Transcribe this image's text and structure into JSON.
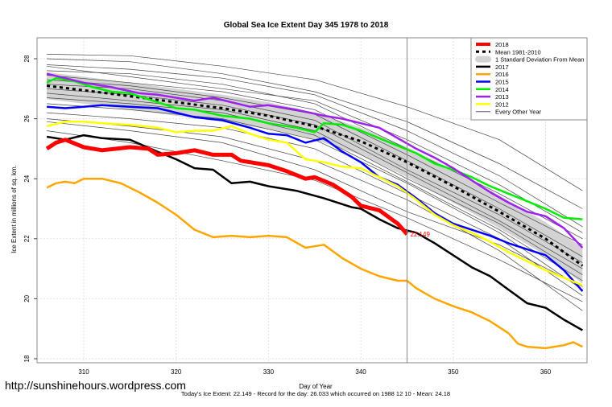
{
  "chart_data": {
    "type": "line",
    "title": "Global Sea Ice Extent Day 345 1978 to 2018",
    "xlabel": "Day of Year",
    "ylabel": "Ice Extent in millions of sq. km.",
    "xlim": [
      305,
      364.5
    ],
    "ylim": [
      17.9,
      28.7
    ],
    "xticks": [
      310,
      320,
      330,
      340,
      350,
      360
    ],
    "yticks": [
      18,
      20,
      22,
      24,
      26,
      28
    ],
    "grid": true,
    "current_day": 345,
    "current_value_label": "22.149",
    "legend_position": "top-right",
    "legend": [
      {
        "label": "2018",
        "color": "#ff0000",
        "style": "thick"
      },
      {
        "label": "Mean 1981-2010",
        "color": "#000000",
        "style": "dashed"
      },
      {
        "label": "1 Standard Deviation From Mean",
        "color": "#d3d3d3",
        "style": "band"
      },
      {
        "label": "2017",
        "color": "#000000",
        "style": "solid"
      },
      {
        "label": "2016",
        "color": "#ffa500",
        "style": "solid"
      },
      {
        "label": "2015",
        "color": "#0000ff",
        "style": "solid"
      },
      {
        "label": "2014",
        "color": "#00ee00",
        "style": "solid"
      },
      {
        "label": "2013",
        "color": "#a020f0",
        "style": "solid"
      },
      {
        "label": "2012",
        "color": "#ffff00",
        "style": "solid"
      },
      {
        "label": "Every Other Year",
        "color": "#555555",
        "style": "thin"
      }
    ],
    "mean": {
      "x": [
        306,
        310,
        315,
        320,
        325,
        330,
        335,
        340,
        345,
        350,
        355,
        360,
        364
      ],
      "y": [
        27.1,
        26.95,
        26.75,
        26.55,
        26.35,
        26.1,
        25.75,
        25.25,
        24.55,
        23.75,
        22.9,
        22.0,
        21.1
      ]
    },
    "std_band": {
      "x": [
        306,
        310,
        315,
        320,
        325,
        330,
        335,
        340,
        345,
        350,
        355,
        360,
        364
      ],
      "upper": [
        27.55,
        27.4,
        27.2,
        27.0,
        26.8,
        26.55,
        26.2,
        25.7,
        25.05,
        24.3,
        23.45,
        22.55,
        21.7
      ],
      "lower": [
        26.65,
        26.5,
        26.3,
        26.1,
        25.9,
        25.65,
        25.3,
        24.8,
        24.05,
        23.2,
        22.35,
        21.45,
        20.5
      ]
    },
    "series": [
      {
        "name": "2018",
        "color": "#ff0000",
        "x": [
          306,
          307,
          308,
          310,
          312,
          315,
          317,
          318,
          320,
          322,
          324,
          326,
          327,
          330,
          332,
          334,
          335,
          337,
          339,
          340,
          342,
          344,
          345
        ],
        "y": [
          25.0,
          25.2,
          25.3,
          25.05,
          24.95,
          25.05,
          25.0,
          24.8,
          24.85,
          24.95,
          24.8,
          24.8,
          24.6,
          24.45,
          24.25,
          24.0,
          24.05,
          23.8,
          23.4,
          23.1,
          22.95,
          22.5,
          22.15
        ]
      },
      {
        "name": "2017",
        "color": "#000000",
        "x": [
          306,
          308,
          310,
          312,
          315,
          318,
          320,
          322,
          324,
          326,
          328,
          330,
          333,
          336,
          339,
          340,
          342,
          344,
          346,
          348,
          350,
          352,
          354,
          356,
          358,
          360,
          362,
          364
        ],
        "y": [
          25.4,
          25.3,
          25.45,
          25.35,
          25.3,
          24.9,
          24.65,
          24.35,
          24.3,
          23.85,
          23.9,
          23.75,
          23.6,
          23.35,
          23.05,
          23.0,
          22.65,
          22.35,
          22.2,
          21.85,
          21.45,
          21.05,
          20.75,
          20.3,
          19.85,
          19.7,
          19.3,
          18.95
        ]
      },
      {
        "name": "2016",
        "color": "#ffa500",
        "x": [
          306,
          307,
          308,
          309,
          310,
          312,
          314,
          316,
          318,
          320,
          322,
          324,
          326,
          328,
          330,
          332,
          334,
          336,
          338,
          340,
          342,
          344,
          345,
          346,
          348,
          350,
          352,
          354,
          356,
          357,
          358,
          360,
          362,
          363,
          364
        ],
        "y": [
          23.7,
          23.85,
          23.9,
          23.85,
          24.0,
          24.0,
          23.85,
          23.55,
          23.2,
          22.8,
          22.3,
          22.05,
          22.1,
          22.05,
          22.1,
          22.05,
          21.7,
          21.8,
          21.35,
          21.0,
          20.75,
          20.6,
          20.6,
          20.35,
          20.0,
          19.75,
          19.55,
          19.25,
          18.85,
          18.5,
          18.4,
          18.35,
          18.45,
          18.55,
          18.4
        ]
      },
      {
        "name": "2015",
        "color": "#0000ff",
        "x": [
          306,
          308,
          310,
          312,
          315,
          318,
          320,
          322,
          325,
          328,
          330,
          332,
          334,
          336,
          338,
          340,
          342,
          344,
          346,
          348,
          350,
          352,
          354,
          356,
          358,
          360,
          362,
          364
        ],
        "y": [
          26.4,
          26.35,
          26.4,
          26.45,
          26.4,
          26.35,
          26.2,
          26.05,
          25.95,
          25.7,
          25.5,
          25.45,
          25.2,
          25.35,
          24.9,
          24.55,
          24.05,
          23.8,
          23.35,
          22.85,
          22.5,
          22.3,
          22.1,
          21.85,
          21.65,
          21.45,
          20.95,
          20.25
        ]
      },
      {
        "name": "2014",
        "color": "#00ee00",
        "x": [
          306,
          307,
          309,
          311,
          313,
          315,
          318,
          320,
          322,
          325,
          328,
          330,
          333,
          335,
          336,
          338,
          340,
          342,
          344,
          346,
          348,
          350,
          352,
          354,
          356,
          358,
          360,
          362,
          364
        ],
        "y": [
          27.2,
          27.35,
          27.25,
          27.05,
          26.9,
          26.85,
          26.55,
          26.35,
          26.3,
          26.1,
          26.0,
          25.85,
          25.7,
          25.55,
          25.85,
          25.8,
          25.6,
          25.35,
          25.1,
          24.85,
          24.5,
          24.3,
          24.05,
          23.75,
          23.5,
          23.25,
          23.0,
          22.7,
          22.65
        ]
      },
      {
        "name": "2013",
        "color": "#a020f0",
        "x": [
          306,
          308,
          310,
          313,
          316,
          318,
          320,
          322,
          324,
          326,
          328,
          330,
          333,
          336,
          338,
          340,
          342,
          344,
          346,
          348,
          350,
          352,
          354,
          356,
          358,
          360,
          362,
          364
        ],
        "y": [
          27.5,
          27.35,
          27.2,
          27.05,
          26.85,
          26.8,
          26.7,
          26.6,
          26.7,
          26.55,
          26.4,
          26.45,
          26.3,
          26.1,
          26.0,
          25.85,
          25.7,
          25.35,
          25.0,
          24.7,
          24.35,
          23.95,
          23.55,
          23.2,
          22.9,
          22.75,
          22.35,
          21.7
        ]
      },
      {
        "name": "2012",
        "color": "#ffff00",
        "x": [
          306,
          308,
          310,
          312,
          315,
          318,
          320,
          322,
          324,
          326,
          328,
          330,
          332,
          334,
          336,
          338,
          340,
          342,
          344,
          346,
          348,
          350,
          352,
          354,
          356,
          358,
          360,
          362,
          364
        ],
        "y": [
          25.75,
          25.9,
          25.9,
          25.85,
          25.8,
          25.7,
          25.55,
          25.6,
          25.6,
          25.75,
          25.5,
          25.3,
          25.2,
          24.65,
          24.55,
          24.4,
          24.35,
          24.05,
          23.75,
          23.3,
          22.8,
          22.45,
          22.2,
          21.9,
          21.55,
          21.25,
          20.95,
          20.7,
          20.45
        ]
      }
    ],
    "other_years": [
      {
        "x": [
          306,
          315,
          325,
          335,
          345,
          355,
          364
        ],
        "y": [
          28.15,
          28.1,
          27.75,
          27.3,
          26.4,
          25.3,
          23.6
        ]
      },
      {
        "x": [
          306,
          315,
          325,
          335,
          345,
          355,
          364
        ],
        "y": [
          28.0,
          27.9,
          27.5,
          26.9,
          25.9,
          24.5,
          23.0
        ]
      },
      {
        "x": [
          306,
          315,
          325,
          335,
          345,
          355,
          364
        ],
        "y": [
          27.8,
          27.65,
          27.35,
          26.8,
          25.6,
          24.1,
          22.4
        ]
      },
      {
        "x": [
          306,
          315,
          325,
          335,
          345,
          355,
          364
        ],
        "y": [
          27.75,
          27.4,
          27.0,
          26.6,
          25.3,
          23.8,
          22.2
        ]
      },
      {
        "x": [
          306,
          315,
          325,
          335,
          345,
          355,
          364
        ],
        "y": [
          27.6,
          27.5,
          27.15,
          26.5,
          25.0,
          23.5,
          22.0
        ]
      },
      {
        "x": [
          306,
          315,
          325,
          335,
          345,
          355,
          364
        ],
        "y": [
          27.45,
          27.2,
          26.9,
          26.3,
          24.8,
          23.2,
          21.8
        ]
      },
      {
        "x": [
          306,
          315,
          325,
          335,
          345,
          355,
          364
        ],
        "y": [
          27.3,
          27.1,
          26.7,
          26.15,
          24.6,
          23.0,
          21.4
        ]
      },
      {
        "x": [
          306,
          315,
          325,
          335,
          345,
          355,
          364
        ],
        "y": [
          27.15,
          27.0,
          26.6,
          25.95,
          24.3,
          22.8,
          21.2
        ]
      },
      {
        "x": [
          306,
          315,
          325,
          335,
          345,
          355,
          364
        ],
        "y": [
          27.0,
          26.8,
          26.45,
          25.8,
          24.2,
          22.6,
          21.0
        ]
      },
      {
        "x": [
          306,
          315,
          325,
          335,
          345,
          355,
          364
        ],
        "y": [
          26.85,
          26.6,
          26.3,
          25.6,
          24.0,
          22.5,
          20.8
        ]
      },
      {
        "x": [
          306,
          315,
          325,
          335,
          345,
          355,
          364
        ],
        "y": [
          26.7,
          26.5,
          26.2,
          25.45,
          23.9,
          22.3,
          20.6
        ]
      },
      {
        "x": [
          306,
          315,
          325,
          335,
          345,
          355,
          364
        ],
        "y": [
          26.5,
          26.3,
          26.0,
          25.3,
          23.85,
          22.2,
          20.3
        ]
      },
      {
        "x": [
          306,
          315,
          325,
          335,
          345,
          355,
          364
        ],
        "y": [
          26.2,
          26.0,
          25.7,
          25.0,
          23.5,
          22.0,
          20.1
        ]
      },
      {
        "x": [
          306,
          315,
          325,
          335,
          345,
          355,
          364
        ],
        "y": [
          26.0,
          25.75,
          25.4,
          24.6,
          23.3,
          21.6,
          19.6
        ]
      },
      {
        "x": [
          306,
          315,
          325,
          335,
          345,
          355,
          364
        ],
        "y": [
          25.6,
          25.2,
          24.6,
          23.95,
          22.7,
          21.3,
          19.9
        ]
      },
      {
        "x": [
          306,
          315,
          325,
          335,
          345,
          355,
          364
        ],
        "y": [
          25.9,
          25.6,
          25.2,
          24.3,
          22.9,
          21.8,
          20.4
        ]
      }
    ]
  },
  "footer": {
    "url": "http://sunshinehours.wordpress.com",
    "stats": "Today's Ice Extent: 22.149  - Record for the day: 26.033 which occurred on 1988 12 10  - Mean: 24.18"
  }
}
